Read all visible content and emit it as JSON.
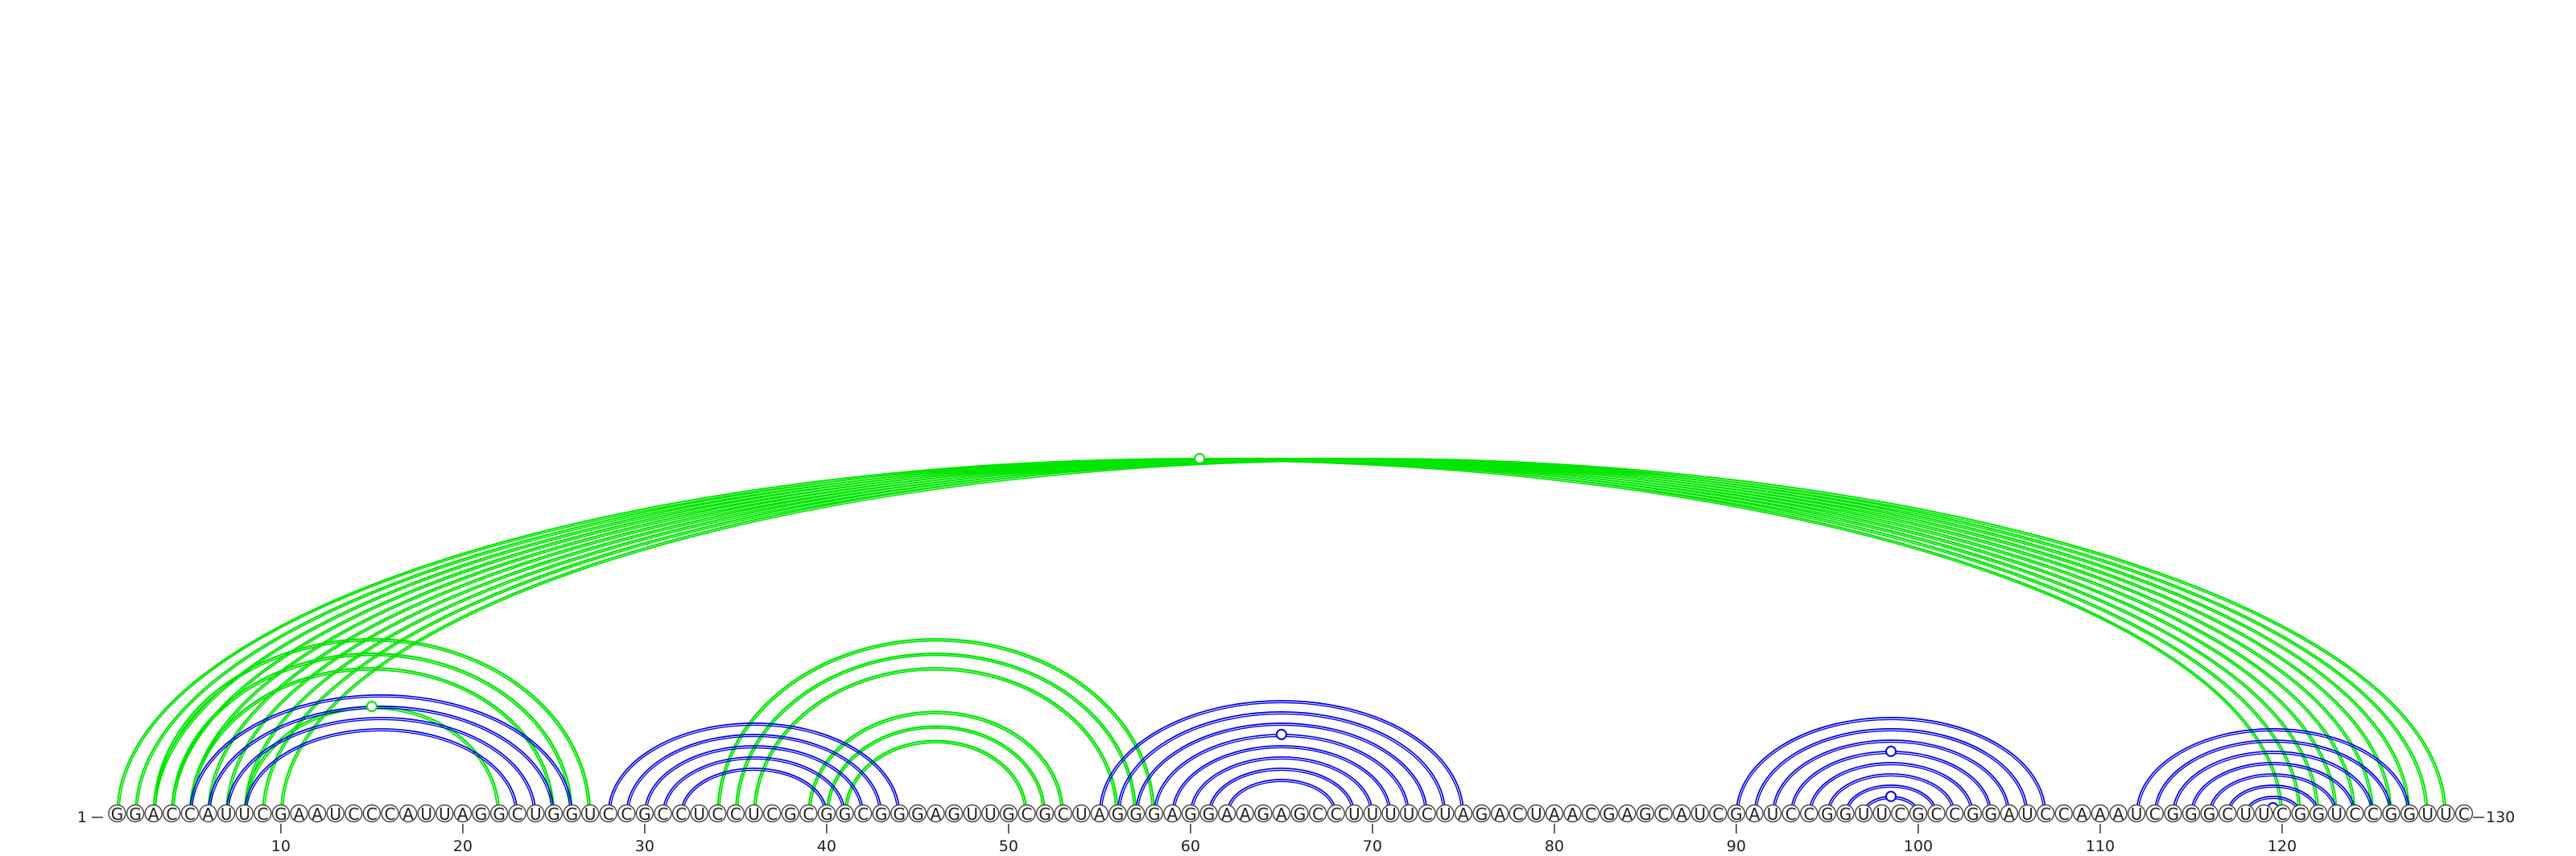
{
  "sequence": "GGACCAUUCGAAUCCCAUUAGGCUGGUCCGCCUCCUCGCGGCGGGAGUUGCGCUAGGGAGGAAGAGCCUUUUCUAGACUAACGAGCAUCGAUCCGGUUCGCCGGAUCCAAAUCGGGCUUCGGUCCGGUUC",
  "labels": {
    "start": "1",
    "end": "130"
  },
  "ticks": [
    "10",
    "20",
    "30",
    "40",
    "50",
    "60",
    "70",
    "80",
    "90",
    "100",
    "110",
    "120"
  ],
  "colors": {
    "blue": "#0000e6",
    "green": "#00e600"
  },
  "arcs": {
    "green_long": [
      [
        1,
        120
      ],
      [
        2,
        121
      ],
      [
        3,
        122
      ],
      [
        4,
        123
      ],
      [
        5,
        124
      ],
      [
        6,
        125
      ],
      [
        7,
        126
      ],
      [
        8,
        127
      ],
      [
        9,
        128
      ],
      [
        10,
        129
      ]
    ],
    "green_mid": [
      [
        3,
        27
      ],
      [
        4,
        26
      ],
      [
        5,
        25
      ],
      [
        34,
        58
      ],
      [
        35,
        57
      ],
      [
        36,
        56
      ],
      [
        39,
        53
      ],
      [
        40,
        52
      ],
      [
        41,
        51
      ]
    ],
    "green_hairpin": [
      [
        8,
        22
      ]
    ],
    "blue": [
      [
        5,
        26
      ],
      [
        6,
        25
      ],
      [
        7,
        24
      ],
      [
        8,
        23
      ],
      [
        28,
        44
      ],
      [
        29,
        43
      ],
      [
        30,
        42
      ],
      [
        31,
        41
      ],
      [
        32,
        40
      ],
      [
        55,
        75
      ],
      [
        56,
        74
      ],
      [
        57,
        73
      ],
      [
        58,
        72
      ],
      [
        59,
        71
      ],
      [
        60,
        70
      ],
      [
        61,
        69
      ],
      [
        62,
        68
      ],
      [
        90,
        107
      ],
      [
        91,
        106
      ],
      [
        92,
        105
      ],
      [
        93,
        104
      ],
      [
        94,
        103
      ],
      [
        95,
        102
      ],
      [
        96,
        101
      ],
      [
        97,
        100
      ],
      [
        112,
        127
      ],
      [
        113,
        126
      ],
      [
        114,
        125
      ],
      [
        115,
        124
      ],
      [
        116,
        123
      ],
      [
        117,
        122
      ],
      [
        118,
        121
      ],
      [
        119,
        120
      ]
    ]
  }
}
